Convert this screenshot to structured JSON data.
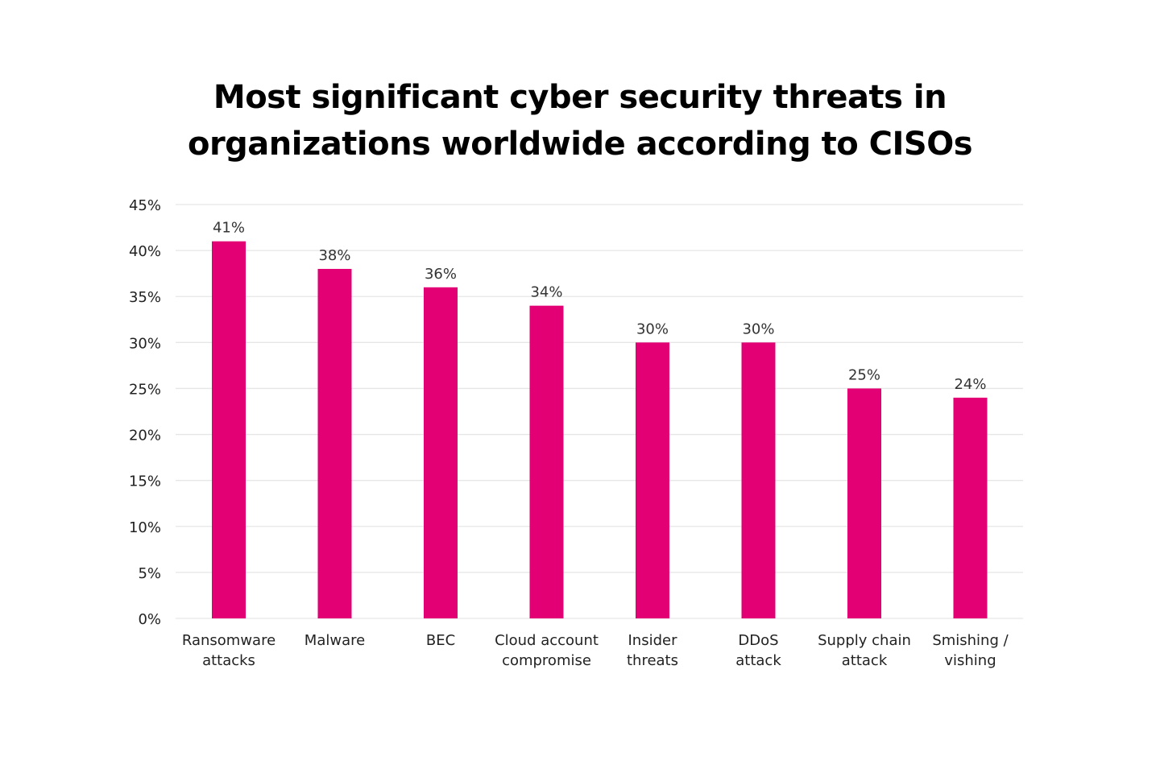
{
  "chart_data": {
    "type": "bar",
    "title_lines": [
      "Most significant cyber security threats in",
      "organizations worldwide according to CISOs"
    ],
    "categories": [
      [
        "Ransomware",
        "attacks"
      ],
      [
        "Malware"
      ],
      [
        "BEC"
      ],
      [
        "Cloud account",
        "compromise"
      ],
      [
        "Insider",
        "threats"
      ],
      [
        "DDoS",
        "attack"
      ],
      [
        "Supply chain",
        "attack"
      ],
      [
        "Smishing /",
        "vishing"
      ]
    ],
    "values": [
      41,
      38,
      36,
      34,
      30,
      30,
      25,
      24
    ],
    "data_labels": [
      "41%",
      "38%",
      "36%",
      "34%",
      "30%",
      "30%",
      "25%",
      "24%"
    ],
    "ylim": [
      0,
      45
    ],
    "yticks": [
      0,
      5,
      10,
      15,
      20,
      25,
      30,
      35,
      40,
      45
    ],
    "ytick_labels": [
      "0%",
      "5%",
      "10%",
      "15%",
      "20%",
      "25%",
      "30%",
      "35%",
      "40%",
      "45%"
    ],
    "grid": true,
    "legend": "none",
    "bar_color": "#E20074",
    "grid_color": "#E6E6E6"
  }
}
